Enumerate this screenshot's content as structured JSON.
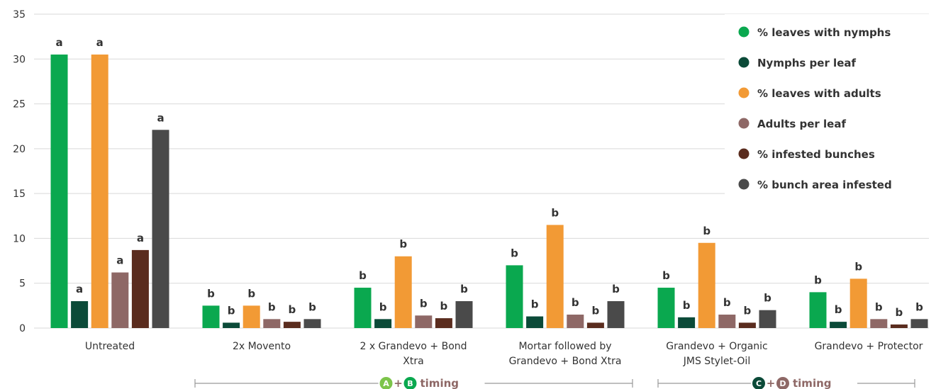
{
  "colors": {
    "pct_leaves_nymphs": "#0aa84f",
    "nymphs_per_leaf": "#0b4a38",
    "pct_leaves_adults": "#f29a35",
    "adults_per_leaf": "#8e6866",
    "pct_infested_bunches": "#5a2c1e",
    "pct_bunch_area_infested": "#4a4a4a",
    "grid": "#d9d9d9",
    "bracket": "#999999",
    "timing_text": "#8e6866",
    "circle_a": "#7cc44a",
    "circle_b": "#0aa84f",
    "circle_c": "#0b4a38",
    "circle_d": "#8e6866"
  },
  "chart_data": {
    "type": "bar",
    "categories": [
      "Untreated",
      "2x Movento",
      "2 x Grandevo + Bond Xtra",
      "Mortar followed by Grandevo + Bond Xtra",
      "Grandevo + Organic JMS Stylet-Oil",
      "Grandevo + Protector"
    ],
    "category_lines": [
      [
        "Untreated"
      ],
      [
        "2x Movento"
      ],
      [
        "2 x Grandevo + Bond",
        "Xtra"
      ],
      [
        "Mortar followed by",
        "Grandevo + Bond Xtra"
      ],
      [
        "Grandevo + Organic",
        "JMS Stylet-Oil"
      ],
      [
        "Grandevo + Protector"
      ]
    ],
    "ylim": [
      0,
      35
    ],
    "yticks": [
      0,
      5,
      10,
      15,
      20,
      25,
      30,
      35
    ],
    "grid": true,
    "legend_position": "top-right",
    "series": [
      {
        "name": "% leaves with nymphs",
        "color_key": "pct_leaves_nymphs",
        "values": [
          30.5,
          2.5,
          4.5,
          7.0,
          4.5,
          4.0
        ],
        "labels": [
          "a",
          "b",
          "b",
          "b",
          "b",
          "b"
        ]
      },
      {
        "name": "Nymphs per leaf",
        "color_key": "nymphs_per_leaf",
        "values": [
          3.0,
          0.6,
          1.0,
          1.3,
          1.2,
          0.7
        ],
        "labels": [
          "a",
          "b",
          "b",
          "b",
          "b",
          "b"
        ]
      },
      {
        "name": "% leaves with adults",
        "color_key": "pct_leaves_adults",
        "values": [
          30.5,
          2.5,
          8.0,
          11.5,
          9.5,
          5.5
        ],
        "labels": [
          "a",
          "b",
          "b",
          "b",
          "b",
          "b"
        ]
      },
      {
        "name": "Adults per leaf",
        "color_key": "adults_per_leaf",
        "values": [
          6.2,
          1.0,
          1.4,
          1.5,
          1.5,
          1.0
        ],
        "labels": [
          "a",
          "b",
          "b",
          "b",
          "b",
          "b"
        ]
      },
      {
        "name": "% infested bunches",
        "color_key": "pct_infested_bunches",
        "values": [
          8.7,
          0.7,
          1.1,
          0.6,
          0.6,
          0.4
        ],
        "labels": [
          "a",
          "b",
          "b",
          "b",
          "b",
          "b"
        ]
      },
      {
        "name": "% bunch area infested",
        "color_key": "pct_bunch_area_infested",
        "values": [
          22.1,
          1.0,
          3.0,
          3.0,
          2.0,
          1.0
        ],
        "labels": [
          "a",
          "b",
          "b",
          "b",
          "b",
          "b"
        ]
      }
    ],
    "timing_groups": [
      {
        "letters": [
          "A",
          "B"
        ],
        "circle_color_keys": [
          "circle_a",
          "circle_b"
        ],
        "plus": "+",
        "text": "timing",
        "from_category": 1,
        "to_category": 3
      },
      {
        "letters": [
          "C",
          "D"
        ],
        "circle_color_keys": [
          "circle_c",
          "circle_d"
        ],
        "plus": "+",
        "text": "timing",
        "from_category": 4,
        "to_category": 5
      }
    ]
  }
}
